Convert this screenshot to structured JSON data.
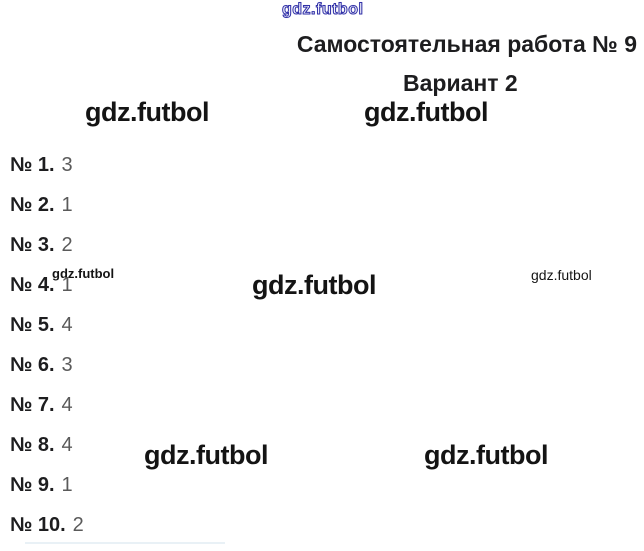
{
  "page": {
    "header_title": "Самостоятельная работа № 9",
    "variant": "Вариант 2"
  },
  "watermark": {
    "text": "gdz.futbol"
  },
  "answers": {
    "items": [
      {
        "label": "№ 1.",
        "value": "3"
      },
      {
        "label": "№ 2.",
        "value": "1"
      },
      {
        "label": "№ 3.",
        "value": "2"
      },
      {
        "label": "№ 4.",
        "value": "1"
      },
      {
        "label": "№ 5.",
        "value": "4"
      },
      {
        "label": "№ 6.",
        "value": "3"
      },
      {
        "label": "№ 7.",
        "value": "4"
      },
      {
        "label": "№ 8.",
        "value": "4"
      },
      {
        "label": "№ 9.",
        "value": "1"
      },
      {
        "label": "№ 10.",
        "value": "2"
      }
    ]
  },
  "colors": {
    "accent": "#3232a8",
    "label": "#1d1d1f",
    "value": "#5a5a5a",
    "watermark": "#141414",
    "background": "#ffffff"
  }
}
